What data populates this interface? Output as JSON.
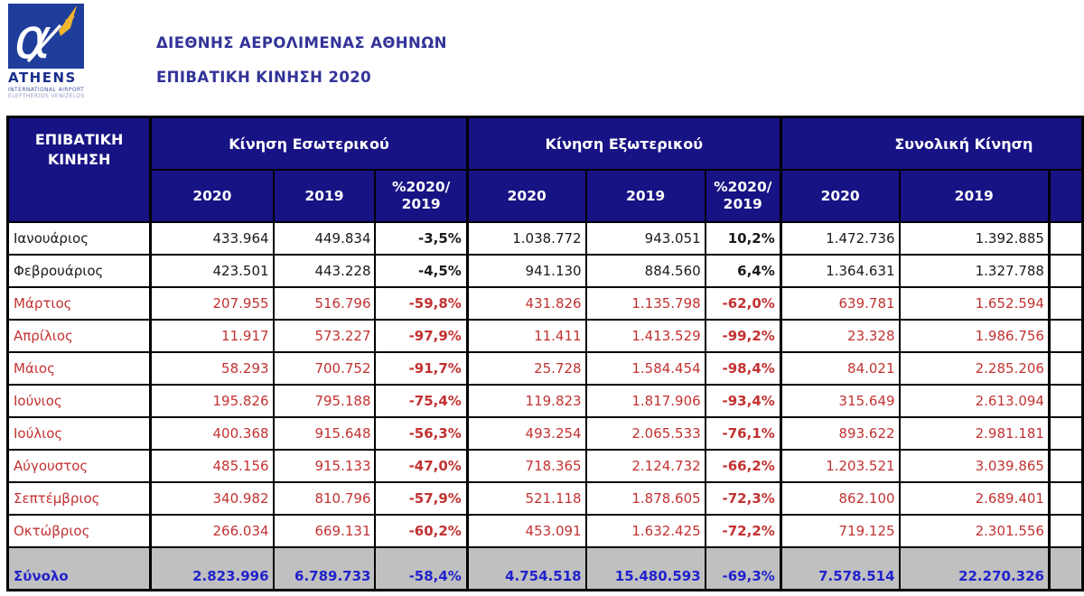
{
  "header": {
    "title_line1": "ΔΙΕΘΝΗΣ ΑΕΡΟΛΙΜΕΝΑΣ ΑΘΗΝΩΝ",
    "title_line2": "ΕΠΙΒΑΤΙΚΗ ΚΙΝΗΣΗ 2020",
    "logo": {
      "name": "ATHENS",
      "line1": "INTERNATIONAL AIRPORT",
      "line2": "ELEFTHERIOS VENIZELOS",
      "glyph": "α"
    }
  },
  "table": {
    "corner": {
      "line1": "ΕΠΙΒΑΤΙΚΗ",
      "line2": "ΚΙΝΗΣΗ"
    },
    "groups": [
      {
        "label": "Κίνηση Εσωτερικού"
      },
      {
        "label": "Κίνηση Εξωτερικού"
      },
      {
        "label": "Συνολική Κίνηση"
      }
    ],
    "sub_headers": [
      "2020",
      "2019",
      "%2020/\n2019",
      "2020",
      "2019",
      "%2020/\n2019",
      "2020",
      "2019"
    ],
    "rows": [
      {
        "label": "Ιανουάριος",
        "style": "black",
        "values": [
          "433.964",
          "449.834",
          "-3,5%",
          "1.038.772",
          "943.051",
          "10,2%",
          "1.472.736",
          "1.392.885"
        ]
      },
      {
        "label": "Φεβρουάριος",
        "style": "black",
        "values": [
          "423.501",
          "443.228",
          "-4,5%",
          "941.130",
          "884.560",
          "6,4%",
          "1.364.631",
          "1.327.788"
        ]
      },
      {
        "label": "Μάρτιος",
        "style": "red",
        "values": [
          "207.955",
          "516.796",
          "-59,8%",
          "431.826",
          "1.135.798",
          "-62,0%",
          "639.781",
          "1.652.594"
        ]
      },
      {
        "label": "Απρίλιος",
        "style": "red",
        "values": [
          "11.917",
          "573.227",
          "-97,9%",
          "11.411",
          "1.413.529",
          "-99,2%",
          "23.328",
          "1.986.756"
        ]
      },
      {
        "label": "Μάιος",
        "style": "red",
        "values": [
          "58.293",
          "700.752",
          "-91,7%",
          "25.728",
          "1.584.454",
          "-98,4%",
          "84.021",
          "2.285.206"
        ]
      },
      {
        "label": "Ιούνιος",
        "style": "red",
        "values": [
          "195.826",
          "795.188",
          "-75,4%",
          "119.823",
          "1.817.906",
          "-93,4%",
          "315.649",
          "2.613.094"
        ]
      },
      {
        "label": "Ιούλιος",
        "style": "red",
        "values": [
          "400.368",
          "915.648",
          "-56,3%",
          "493.254",
          "2.065.533",
          "-76,1%",
          "893.622",
          "2.981.181"
        ]
      },
      {
        "label": "Αύγουστος",
        "style": "red",
        "values": [
          "485.156",
          "915.133",
          "-47,0%",
          "718.365",
          "2.124.732",
          "-66,2%",
          "1.203.521",
          "3.039.865"
        ]
      },
      {
        "label": "Σεπτέμβριος",
        "style": "red",
        "values": [
          "340.982",
          "810.796",
          "-57,9%",
          "521.118",
          "1.878.605",
          "-72,3%",
          "862.100",
          "2.689.401"
        ]
      },
      {
        "label": "Οκτώβριος",
        "style": "red",
        "values": [
          "266.034",
          "669.131",
          "-60,2%",
          "453.091",
          "1.632.425",
          "-72,2%",
          "719.125",
          "2.301.556"
        ]
      }
    ],
    "total_row": {
      "label": "Σύνολο",
      "style": "blue",
      "values": [
        "2.823.996",
        "6.789.733",
        "-58,4%",
        "4.754.518",
        "15.480.593",
        "-69,3%",
        "7.578.514",
        "22.270.326"
      ]
    }
  },
  "colors": {
    "header_bg": "#181384",
    "title_text": "#333399",
    "row_black": "#1a1a1a",
    "row_red": "#c33232",
    "total_text": "#2222cc",
    "total_bg": "#c0c0c0",
    "logo_blue": "#1f3d9a",
    "plane_yellow": "#f2b630"
  }
}
